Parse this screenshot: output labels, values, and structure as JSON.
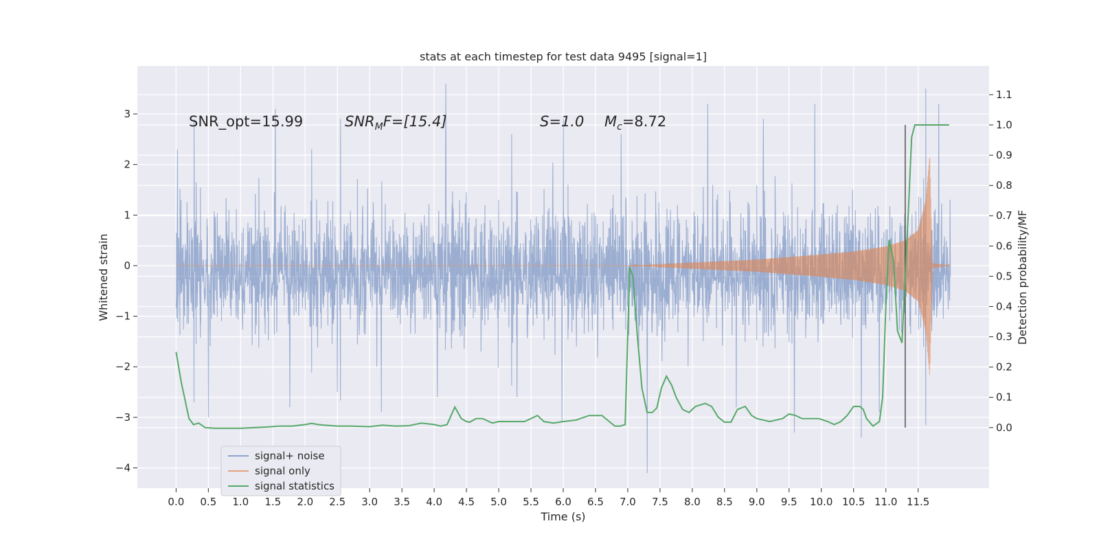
{
  "chart_data": {
    "type": "line",
    "title": "stats at each timestep for test data 9495 [signal=1]",
    "xlabel": "Time (s)",
    "ylabel": "Whitened strain",
    "y2label": "Detection probability/MF",
    "xlim": [
      -0.6,
      12.6
    ],
    "ylim": [
      -4.4,
      3.95
    ],
    "y2lim": [
      -0.2,
      1.195
    ],
    "x_ticks": [
      "0.0",
      "0.5",
      "1.0",
      "1.5",
      "2.0",
      "2.5",
      "3.0",
      "3.5",
      "4.0",
      "4.5",
      "5.0",
      "5.5",
      "6.0",
      "6.5",
      "7.0",
      "7.5",
      "8.0",
      "8.5",
      "9.0",
      "9.5",
      "10.0",
      "10.5",
      "11.0",
      "11.5"
    ],
    "y_ticks": [
      "3",
      "2",
      "1",
      "0",
      "−1",
      "−2",
      "−3",
      "−4"
    ],
    "y2_ticks": [
      "1.1",
      "1.0",
      "0.9",
      "0.8",
      "0.7",
      "0.6",
      "0.5",
      "0.4",
      "0.3",
      "0.2",
      "0.1",
      "0.0"
    ],
    "grid": true,
    "legend_position": "lower-left",
    "annotations": {
      "snr_opt": "SNR_opt=15.99",
      "snr_mf_base": "SNR",
      "snr_mf_sub": "M",
      "snr_mf_rest": "F=[15.4]",
      "s_value": "S=1.0",
      "mc_base": "M",
      "mc_sub": "c",
      "mc_rest": "=8.72"
    },
    "merger_time": 11.3,
    "series": [
      {
        "name": "signal+ noise",
        "color": "#4c72b0",
        "kind": "noise-band",
        "x_range": [
          0.0,
          12.0
        ],
        "envelope": 1.6,
        "peaks": [
          [
            0.02,
            2.3
          ],
          [
            0.28,
            2.9
          ],
          [
            1.54,
            3.1
          ],
          [
            2.1,
            2.3
          ],
          [
            2.55,
            2.9
          ],
          [
            4.18,
            3.6
          ],
          [
            5.2,
            2.6
          ],
          [
            6.0,
            2.9
          ],
          [
            6.9,
            2.6
          ],
          [
            8.24,
            3.2
          ],
          [
            9.1,
            2.9
          ],
          [
            9.9,
            3.2
          ],
          [
            11.62,
            3.5
          ],
          [
            11.82,
            3.2
          ]
        ],
        "troughs": [
          [
            0.5,
            -3.0
          ],
          [
            1.76,
            -2.8
          ],
          [
            2.5,
            -2.5
          ],
          [
            3.18,
            -2.9
          ],
          [
            4.05,
            -2.6
          ],
          [
            5.28,
            -2.6
          ],
          [
            5.98,
            -3.1
          ],
          [
            7.3,
            -4.1
          ],
          [
            8.68,
            -2.8
          ],
          [
            9.58,
            -3.3
          ],
          [
            10.62,
            -3.4
          ],
          [
            10.9,
            -2.9
          ]
        ]
      },
      {
        "name": "signal only",
        "color": "#dd8452",
        "kind": "chirp",
        "x_range": [
          0.0,
          12.0
        ],
        "onset": 7.0,
        "peak_time": 11.7,
        "amplitude_at": [
          [
            7.0,
            0.0
          ],
          [
            8.0,
            0.06
          ],
          [
            9.0,
            0.12
          ],
          [
            10.0,
            0.22
          ],
          [
            10.5,
            0.28
          ],
          [
            11.0,
            0.38
          ],
          [
            11.3,
            0.5
          ],
          [
            11.5,
            0.7
          ],
          [
            11.62,
            1.3
          ],
          [
            11.68,
            2.2
          ],
          [
            11.72,
            0.05
          ],
          [
            12.0,
            0.0
          ]
        ]
      },
      {
        "name": "signal statistics",
        "color": "#55a868",
        "kind": "line",
        "axis": "secondary",
        "x": [
          0.0,
          0.08,
          0.14,
          0.2,
          0.27,
          0.35,
          0.45,
          0.6,
          0.8,
          1.0,
          1.2,
          1.4,
          1.6,
          1.8,
          2.0,
          2.1,
          2.2,
          2.3,
          2.5,
          2.7,
          3.0,
          3.2,
          3.4,
          3.6,
          3.8,
          4.0,
          4.1,
          4.2,
          4.32,
          4.42,
          4.5,
          4.55,
          4.65,
          4.75,
          4.9,
          5.0,
          5.2,
          5.4,
          5.5,
          5.6,
          5.7,
          5.85,
          6.0,
          6.2,
          6.4,
          6.6,
          6.8,
          6.88,
          6.96,
          7.03,
          7.08,
          7.15,
          7.22,
          7.3,
          7.38,
          7.45,
          7.52,
          7.6,
          7.68,
          7.75,
          7.85,
          7.95,
          8.05,
          8.2,
          8.3,
          8.4,
          8.5,
          8.6,
          8.7,
          8.82,
          8.92,
          9.0,
          9.1,
          9.2,
          9.3,
          9.4,
          9.5,
          9.6,
          9.7,
          9.8,
          9.88,
          9.96,
          10.1,
          10.2,
          10.3,
          10.4,
          10.5,
          10.6,
          10.65,
          10.7,
          10.8,
          10.9,
          10.95,
          11.0,
          11.05,
          11.12,
          11.18,
          11.25,
          11.3,
          11.35,
          11.4,
          11.45,
          11.55,
          11.7,
          11.9
        ],
        "y": [
          0.25,
          0.15,
          0.09,
          0.03,
          0.01,
          0.015,
          0.0,
          -0.002,
          -0.002,
          -0.002,
          0.0,
          0.002,
          0.005,
          0.005,
          0.01,
          0.014,
          0.01,
          0.008,
          0.005,
          0.005,
          0.003,
          0.008,
          0.005,
          0.006,
          0.015,
          0.01,
          0.005,
          0.01,
          0.068,
          0.03,
          0.02,
          0.018,
          0.03,
          0.03,
          0.015,
          0.02,
          0.02,
          0.02,
          0.03,
          0.04,
          0.02,
          0.015,
          0.02,
          0.025,
          0.04,
          0.04,
          0.005,
          0.005,
          0.01,
          0.53,
          0.5,
          0.3,
          0.13,
          0.05,
          0.05,
          0.065,
          0.13,
          0.17,
          0.14,
          0.1,
          0.06,
          0.05,
          0.07,
          0.08,
          0.07,
          0.035,
          0.018,
          0.018,
          0.06,
          0.07,
          0.04,
          0.03,
          0.025,
          0.02,
          0.025,
          0.03,
          0.045,
          0.04,
          0.03,
          0.03,
          0.03,
          0.03,
          0.02,
          0.01,
          0.02,
          0.04,
          0.07,
          0.07,
          0.06,
          0.03,
          0.005,
          0.02,
          0.1,
          0.4,
          0.62,
          0.55,
          0.32,
          0.28,
          0.5,
          0.72,
          0.96,
          1.0,
          1.0,
          1.0,
          1.0
        ],
        "end_marker": [
          11.98,
          1.0
        ]
      }
    ]
  }
}
